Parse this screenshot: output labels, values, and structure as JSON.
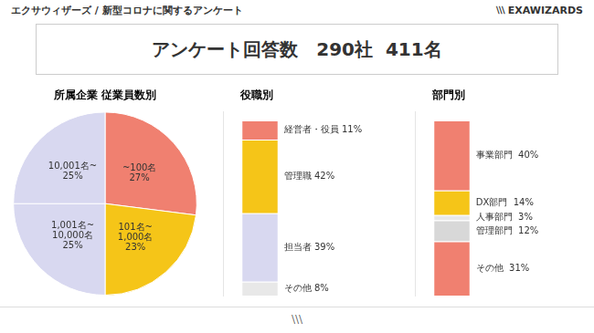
{
  "annotations": [
    "エクサウィザーズ / 新型コロナに関するアンケート",
    "⧵⧵⧵ EXAWIZARDS",
    "アンケート回答数　290社  411名",
    "⧵⧵⧵"
  ],
  "chart_data": [
    {
      "type": "pie",
      "title": "所属企業 従業員数別",
      "categories": [
        "~100名\n27%",
        "101名~\n1,000名\n23%",
        "1,001名~\n10,000名\n25%",
        "10,001名~\n25%"
      ],
      "values": [
        27,
        23,
        25,
        25
      ],
      "colors": [
        "#F08070",
        "#F5C518",
        "#D8D8F0",
        "#D8D8F0"
      ]
    },
    {
      "type": "bar",
      "title": "役職別",
      "stacked": true,
      "tick_labels": false,
      "grid": false,
      "ylim": [
        0,
        105
      ],
      "categories": [
        null
      ],
      "series": [
        {
          "name": "その他 8%",
          "color": "#E8E8E8",
          "values": [
            8
          ]
        },
        {
          "name": "担当者 39%",
          "color": "#D8D8F0",
          "values": [
            39
          ]
        },
        {
          "name": "管理職 42%",
          "color": "#F5C518",
          "values": [
            42
          ]
        },
        {
          "name": "経営者・役員 11%",
          "color": "#F08070",
          "values": [
            11
          ]
        }
      ]
    },
    {
      "type": "bar",
      "title": "部門別",
      "stacked": true,
      "tick_labels": false,
      "grid": false,
      "ylim": [
        0,
        105
      ],
      "categories": [
        null
      ],
      "series": [
        {
          "name": "その他  31%",
          "color": "#F08070",
          "values": [
            31
          ]
        },
        {
          "name": "管理部門  12%",
          "color": "#D8D8D8",
          "values": [
            12
          ]
        },
        {
          "name": "人事部門  3%",
          "color": "#E8E8E8",
          "values": [
            3
          ]
        },
        {
          "name": "DX部門  14%",
          "color": "#F5C518",
          "values": [
            14
          ]
        },
        {
          "name": "事業部門  40%",
          "color": "#F08070",
          "values": [
            40
          ]
        }
      ]
    }
  ]
}
